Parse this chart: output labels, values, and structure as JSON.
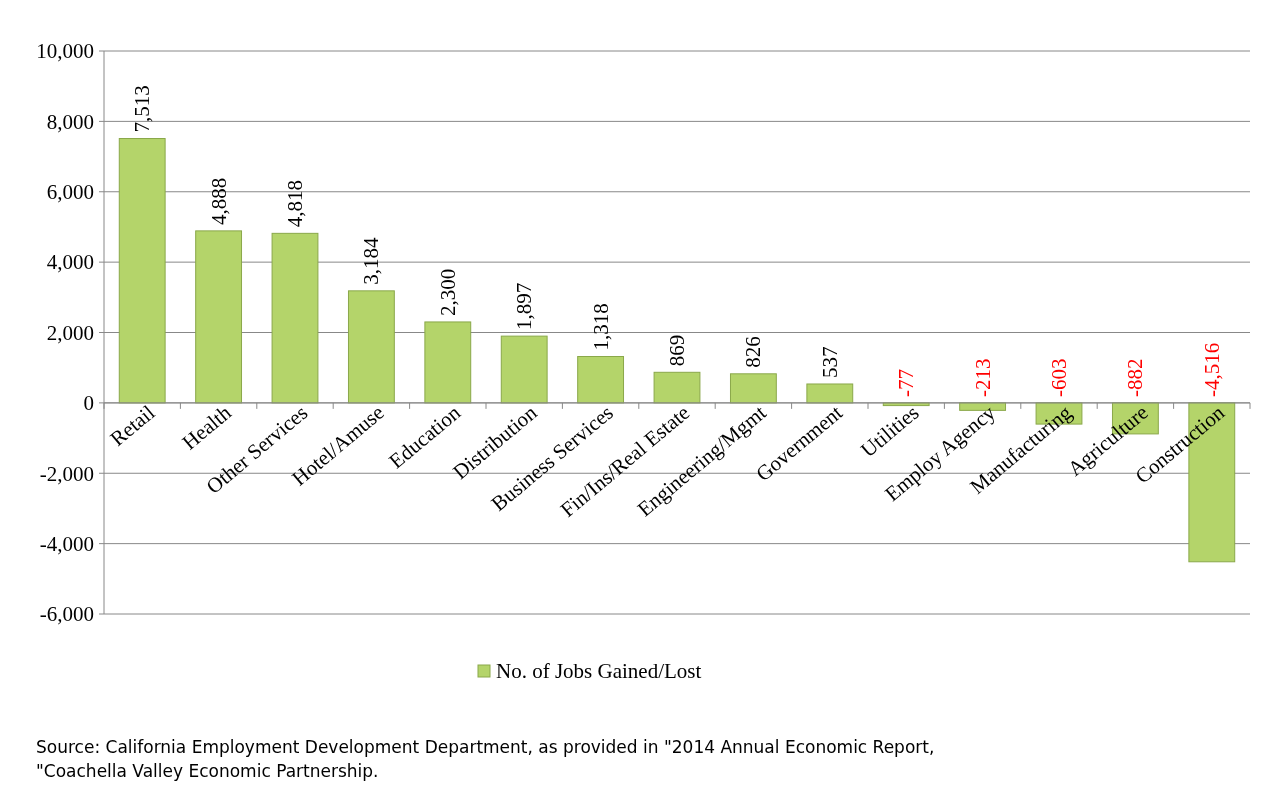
{
  "chart_data": {
    "type": "bar",
    "categories": [
      "Retail",
      "Health",
      "Other Services",
      "Hotel/Amuse",
      "Education",
      "Distribution",
      "Business Services",
      "Fin/Ins/Real Estate",
      "Engineering/Mgmt",
      "Government",
      "Utilities",
      "Employ Agency",
      "Manufacturing",
      "Agriculture",
      "Construction"
    ],
    "series": [
      {
        "name": "No. of Jobs Gained/Lost",
        "color": "#b4d46a",
        "values": [
          7513,
          4888,
          4818,
          3184,
          2300,
          1897,
          1318,
          869,
          826,
          537,
          -77,
          -213,
          -603,
          -882,
          -4516
        ],
        "value_labels": [
          "7,513",
          "4,888",
          "4,818",
          "3,184",
          "2,300",
          "1,897",
          "1,318",
          "869",
          "826",
          "537",
          "-77",
          "-213",
          "-603",
          "-882",
          "-4,516"
        ]
      }
    ],
    "ylim": [
      -6000,
      10000
    ],
    "yticks": [
      {
        "value": -6000,
        "label": "-6,000"
      },
      {
        "value": -4000,
        "label": "-4,000"
      },
      {
        "value": -2000,
        "label": "-2,000"
      },
      0,
      {
        "value": 2000,
        "label": "2,000"
      },
      {
        "value": 4000,
        "label": "4,000"
      },
      {
        "value": 6000,
        "label": "6,000"
      },
      {
        "value": 8000,
        "label": "8,000"
      },
      {
        "value": 10000,
        "label": "10,000"
      }
    ],
    "grid": "y",
    "legend": "bottom",
    "annotations": [
      "Source: California Employment Development Department, as provided in \"2014 Annual Economic Report, \"Coachella Valley Economic Partnership."
    ]
  }
}
